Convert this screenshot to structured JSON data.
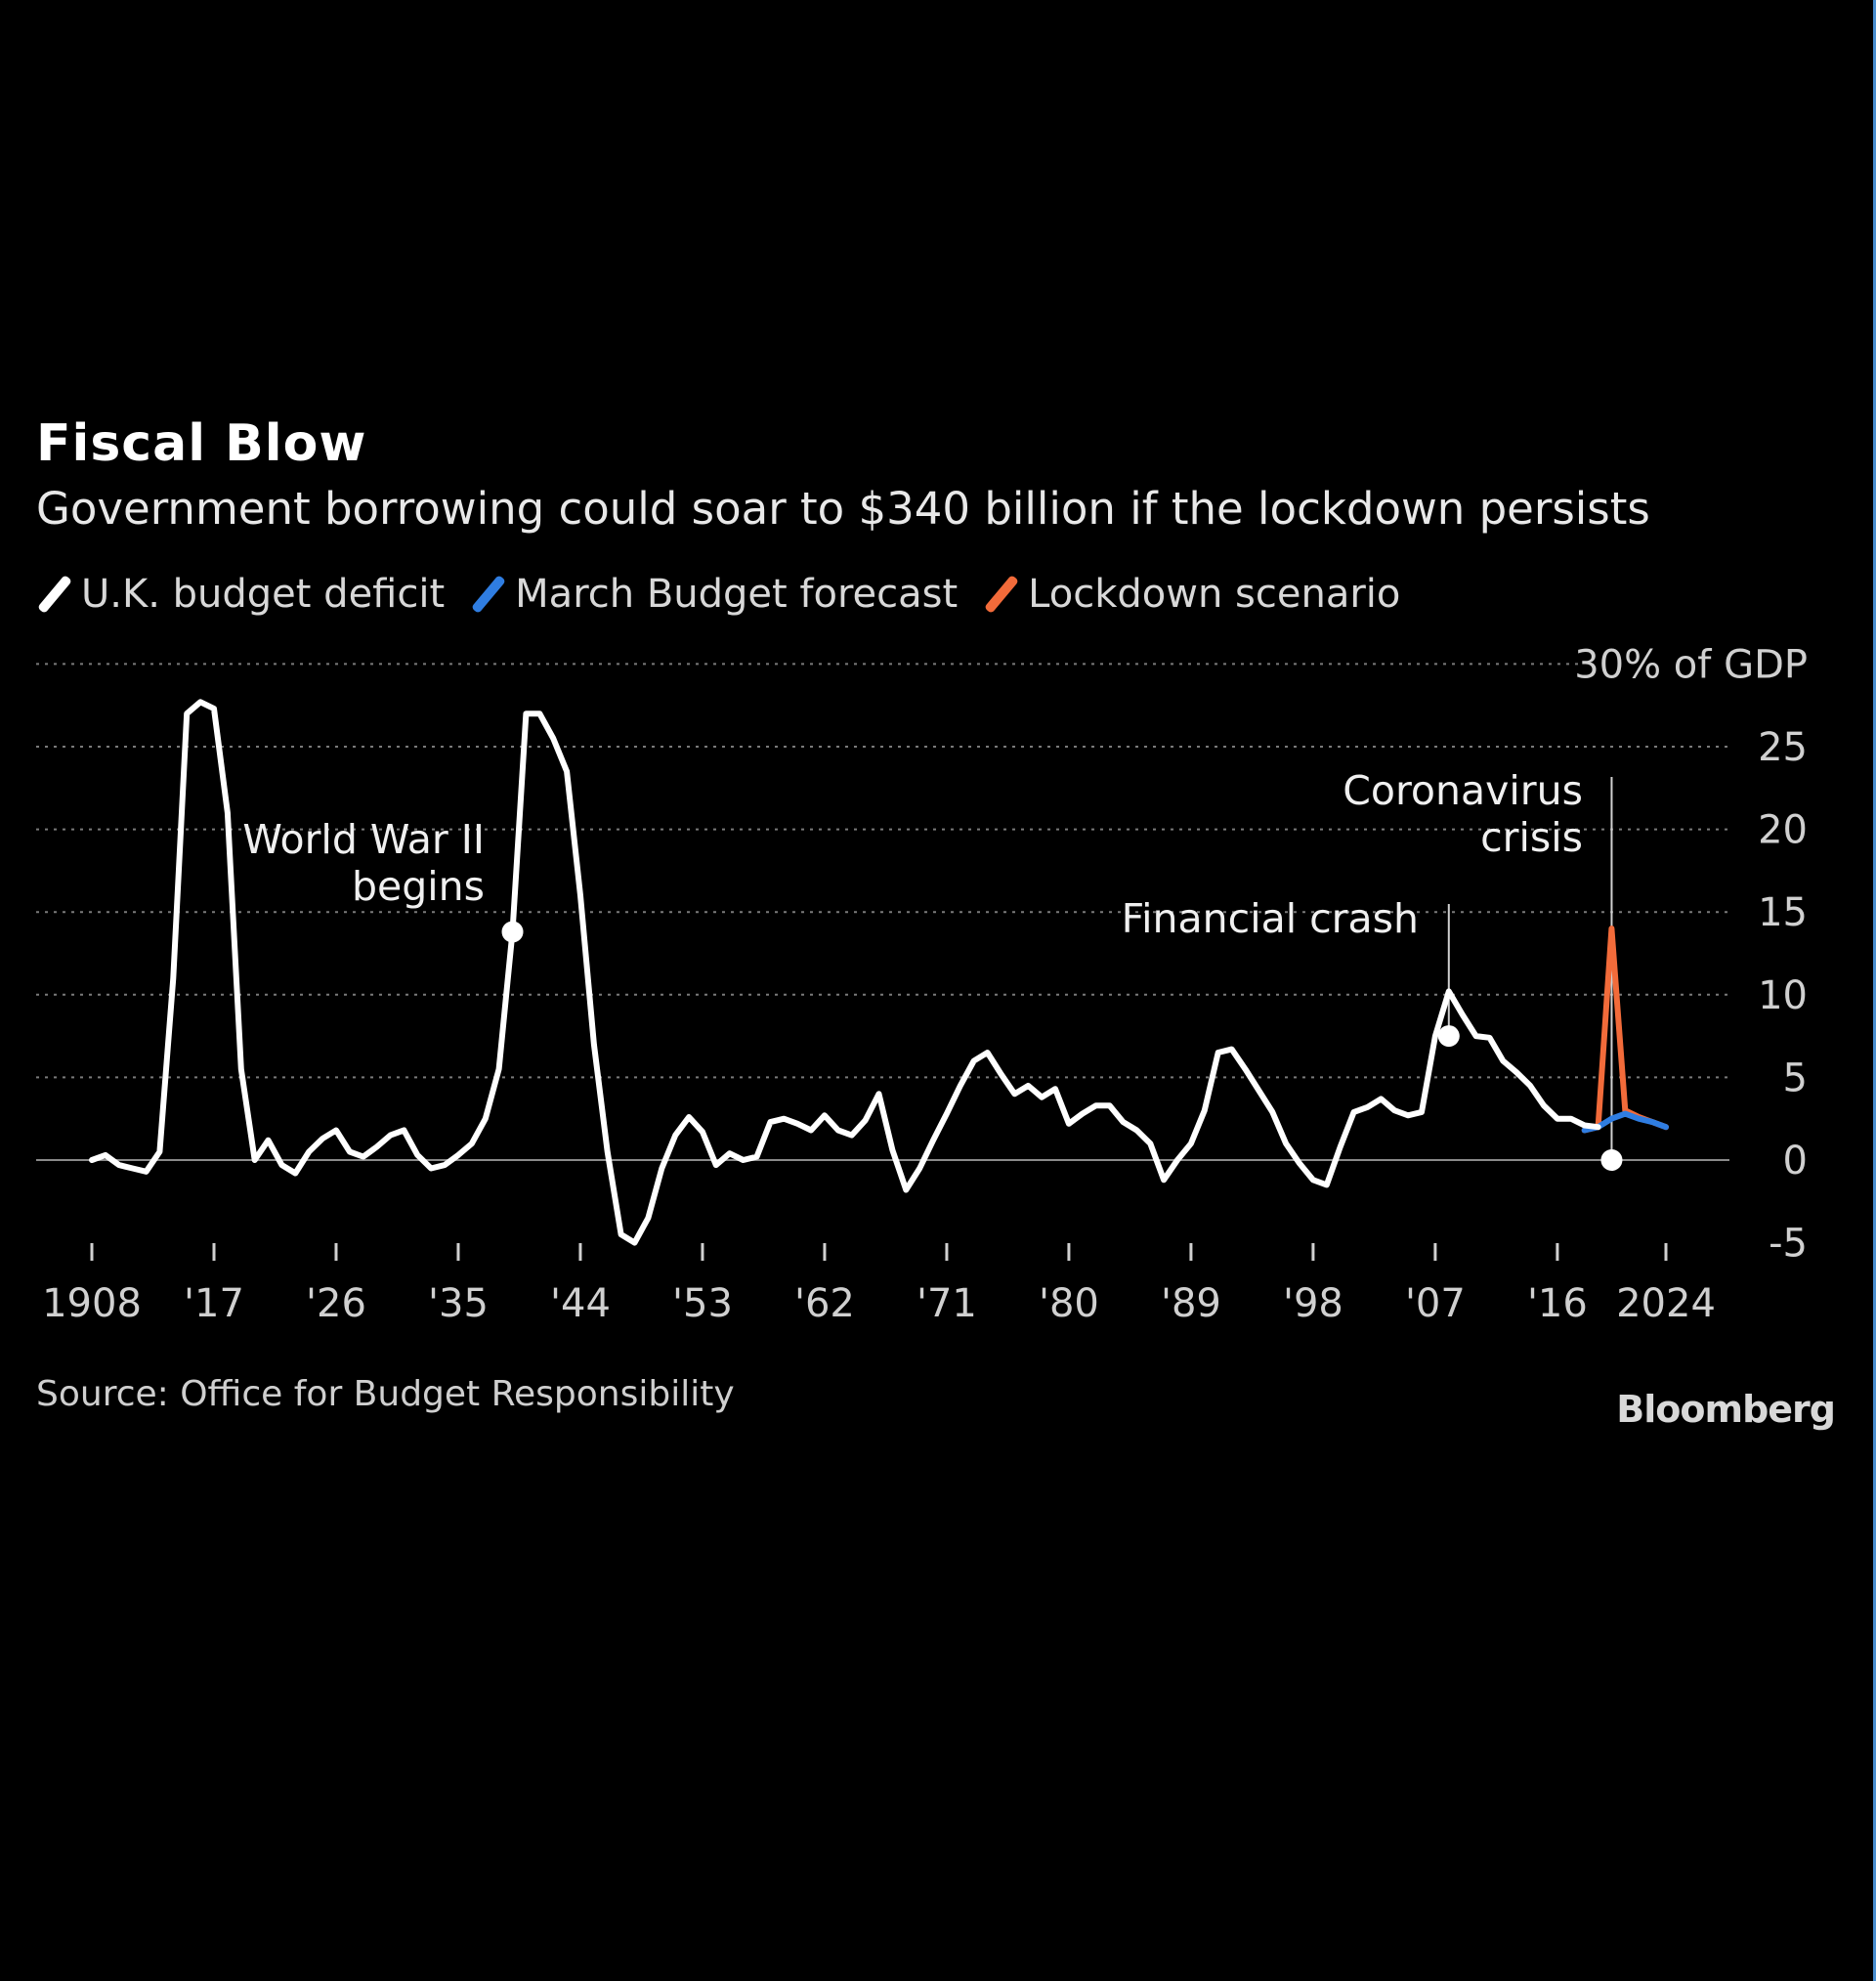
{
  "title": "Fiscal Blow",
  "subtitle": "Government borrowing could soar to $340 billion if the lockdown persists",
  "legend": [
    {
      "label": "U.K. budget deficit",
      "color": "#ffffff"
    },
    {
      "label": "March Budget forecast",
      "color": "#2f7de1"
    },
    {
      "label": "Lockdown scenario",
      "color": "#f26b3a"
    }
  ],
  "source": "Source: Office for Budget Responsibility",
  "brand": "Bloomberg",
  "chart_data": {
    "type": "line",
    "ylim": [
      -5,
      30
    ],
    "yticks": [
      -5,
      0,
      5,
      10,
      15,
      20,
      25,
      30
    ],
    "ytick_labels": [
      "-5",
      "0",
      "5",
      "10",
      "15",
      "20",
      "25",
      "30% of GDP"
    ],
    "xlim": [
      1908,
      2024
    ],
    "xticks": [
      1908,
      1917,
      1926,
      1935,
      1944,
      1953,
      1962,
      1971,
      1980,
      1989,
      1998,
      2007,
      2016,
      2024
    ],
    "xtick_labels": [
      "1908",
      "'17",
      "'26",
      "'35",
      "'44",
      "'53",
      "'62",
      "'71",
      "'80",
      "'89",
      "'98",
      "'07",
      "'16",
      "2024"
    ],
    "grid": "horizontal dotted",
    "legend_position": "top-left",
    "series": [
      {
        "name": "U.K. budget deficit",
        "color": "#ffffff",
        "x": [
          1908,
          1909,
          1910,
          1911,
          1912,
          1913,
          1914,
          1915,
          1916,
          1917,
          1918,
          1919,
          1920,
          1921,
          1922,
          1923,
          1924,
          1925,
          1926,
          1927,
          1928,
          1929,
          1930,
          1931,
          1932,
          1933,
          1934,
          1935,
          1936,
          1937,
          1938,
          1939,
          1940,
          1941,
          1942,
          1943,
          1944,
          1945,
          1946,
          1947,
          1948,
          1949,
          1950,
          1951,
          1952,
          1953,
          1954,
          1955,
          1956,
          1957,
          1958,
          1959,
          1960,
          1961,
          1962,
          1963,
          1964,
          1965,
          1966,
          1967,
          1968,
          1969,
          1970,
          1971,
          1972,
          1973,
          1974,
          1975,
          1976,
          1977,
          1978,
          1979,
          1980,
          1981,
          1982,
          1983,
          1984,
          1985,
          1986,
          1987,
          1988,
          1989,
          1990,
          1991,
          1992,
          1993,
          1994,
          1995,
          1996,
          1997,
          1998,
          1999,
          2000,
          2001,
          2002,
          2003,
          2004,
          2005,
          2006,
          2007,
          2008,
          2009,
          2010,
          2011,
          2012,
          2013,
          2014,
          2015,
          2016,
          2017,
          2018,
          2019
        ],
        "y": [
          0,
          0.3,
          -0.3,
          -0.5,
          -0.7,
          0.5,
          11,
          27,
          27.7,
          27.3,
          21,
          5.5,
          0,
          1.2,
          -0.3,
          -0.8,
          0.5,
          1.3,
          1.8,
          0.5,
          0.2,
          0.8,
          1.5,
          1.8,
          0.3,
          -0.5,
          -0.3,
          0.3,
          1,
          2.5,
          5.5,
          13.8,
          27,
          27,
          25.5,
          23.5,
          16,
          7,
          0.5,
          -4.5,
          -5,
          -3.5,
          -0.5,
          1.5,
          2.6,
          1.7,
          -0.3,
          0.4,
          0,
          0.2,
          2.3,
          2.5,
          2.2,
          1.8,
          2.7,
          1.8,
          1.5,
          2.4,
          4,
          0.6,
          -1.8,
          -0.5,
          1.2,
          2.8,
          4.5,
          6,
          6.5,
          5.2,
          4,
          4.5,
          3.8,
          4.3,
          2.2,
          2.8,
          3.3,
          3.3,
          2.3,
          1.8,
          1,
          -1.2,
          0,
          1,
          3,
          6.5,
          6.7,
          5.5,
          4.2,
          2.9,
          1,
          -0.2,
          -1.2,
          -1.5,
          0.8,
          2.9,
          3.2,
          3.7,
          3,
          2.7,
          2.9,
          7.5,
          10.2,
          8.8,
          7.5,
          7.4,
          6,
          5.3,
          4.5,
          3.3,
          2.5,
          2.5,
          2.1,
          2
        ]
      },
      {
        "name": "March Budget forecast",
        "color": "#2f7de1",
        "x": [
          2018,
          2019,
          2020,
          2021,
          2022,
          2023,
          2024
        ],
        "y": [
          1.8,
          2,
          2.5,
          2.8,
          2.5,
          2.3,
          2
        ]
      },
      {
        "name": "Lockdown scenario",
        "color": "#f26b3a",
        "x": [
          2018,
          2019,
          2020,
          2021,
          2022,
          2023,
          2024
        ],
        "y": [
          1.8,
          2,
          14,
          3,
          2.6,
          2.3,
          2
        ]
      }
    ],
    "annotations": [
      {
        "text": [
          "World War II",
          "begins"
        ],
        "x": 1939,
        "y": 13.8
      },
      {
        "text": [
          "Financial crash"
        ],
        "x": 2008,
        "y": 7.5
      },
      {
        "text": [
          "Coronavirus",
          "crisis"
        ],
        "x": 2020,
        "y": 0
      }
    ]
  }
}
